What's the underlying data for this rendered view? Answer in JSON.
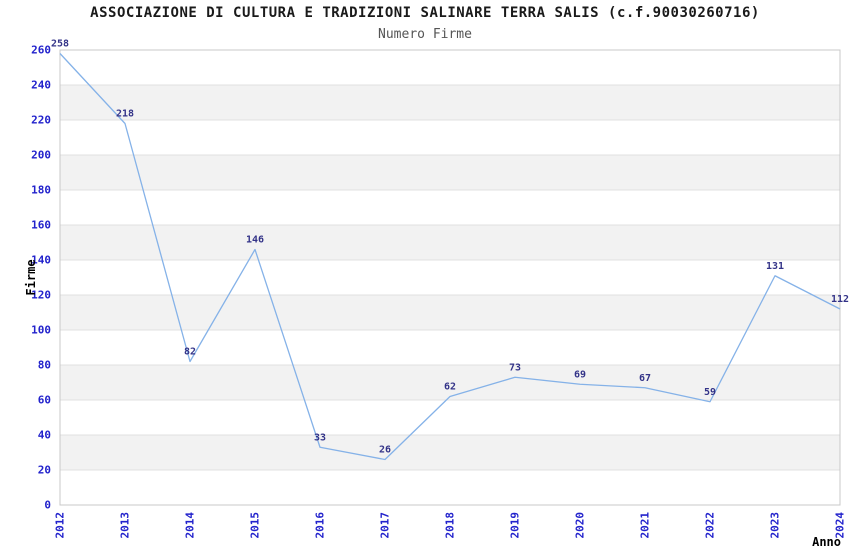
{
  "header": {
    "title": "ASSOCIAZIONE DI CULTURA E TRADIZIONI SALINARE TERRA SALIS (c.f.90030260716)",
    "subtitle": "Numero Firme"
  },
  "chart_data": {
    "type": "line",
    "title": "ASSOCIAZIONE DI CULTURA E TRADIZIONI SALINARE TERRA SALIS (c.f.90030260716)",
    "subtitle": "Numero Firme",
    "xlabel": "Anno",
    "ylabel": "Firme",
    "categories": [
      "2012",
      "2013",
      "2014",
      "2015",
      "2016",
      "2017",
      "2018",
      "2019",
      "2020",
      "2021",
      "2022",
      "2023",
      "2024"
    ],
    "values": [
      258,
      218,
      82,
      146,
      33,
      26,
      62,
      73,
      69,
      67,
      59,
      131,
      112
    ],
    "ylim": [
      0,
      260
    ],
    "ytick_step": 20,
    "grid": "horizontal-striped",
    "legend_position": "none",
    "data_labels_visible": true,
    "colors": {
      "line": "#85b2e8",
      "tick_label": "#2222cc",
      "value_label": "#333388",
      "stripe": "#f2f2f2",
      "grid_line": "#e0e0e0",
      "plot_border": "#c8c8c8",
      "axis_title": "#000000",
      "background": "#ffffff"
    }
  }
}
